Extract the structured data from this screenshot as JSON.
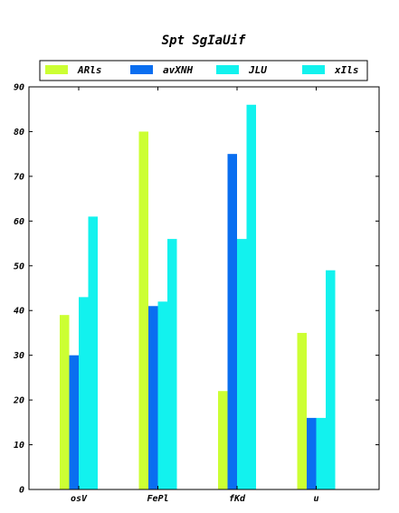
{
  "chart_data": {
    "type": "bar",
    "title": "Spt SgIaUif",
    "xlabel": "",
    "ylabel": "",
    "categories": [
      "osV",
      "FePl",
      "fKd",
      "u"
    ],
    "series": [
      {
        "name": "ARls",
        "color": "#ccff33",
        "values": [
          39,
          80,
          22,
          35
        ]
      },
      {
        "name": "avXNH",
        "color": "#0a6ef0",
        "values": [
          30,
          41,
          75,
          16
        ]
      },
      {
        "name": "JLU",
        "color": "#12f2ee",
        "values": [
          43,
          42,
          56,
          16
        ]
      },
      {
        "name": "xIls",
        "color": "#12f2ee",
        "values": [
          61,
          56,
          86,
          49
        ]
      }
    ],
    "ylim": [
      0,
      90
    ],
    "yticks": [
      0,
      10,
      20,
      30,
      40,
      50,
      60,
      70,
      80,
      90
    ],
    "grid": false,
    "legend_position": "top"
  }
}
